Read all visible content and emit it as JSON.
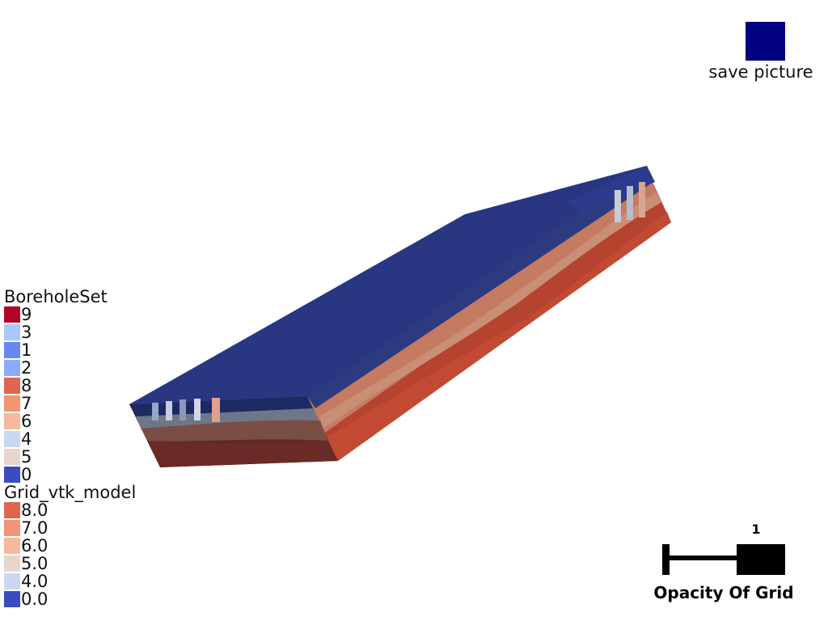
{
  "save_button": {
    "label": "save picture",
    "color": "#000080"
  },
  "legends": {
    "borehole": {
      "title": "BoreholeSet",
      "items": [
        {
          "label": "9",
          "color": "#b40426"
        },
        {
          "label": "3",
          "color": "#aac7fd"
        },
        {
          "label": "1",
          "color": "#6788ee"
        },
        {
          "label": "2",
          "color": "#88abfd"
        },
        {
          "label": "8",
          "color": "#e0654f"
        },
        {
          "label": "7",
          "color": "#f39475"
        },
        {
          "label": "6",
          "color": "#f7b89c"
        },
        {
          "label": "4",
          "color": "#c9d7f0"
        },
        {
          "label": "5",
          "color": "#e8d6cc"
        },
        {
          "label": "0",
          "color": "#3b4cc0"
        }
      ]
    },
    "grid": {
      "title": "Grid_vtk_model",
      "items": [
        {
          "label": "8.0",
          "color": "#e0654f"
        },
        {
          "label": "7.0",
          "color": "#f39475"
        },
        {
          "label": "6.0",
          "color": "#f7b89c"
        },
        {
          "label": "5.0",
          "color": "#e8d6cc"
        },
        {
          "label": "4.0",
          "color": "#c9d7f0"
        },
        {
          "label": "0.0",
          "color": "#3b4cc0"
        }
      ]
    }
  },
  "opacity_slider": {
    "value": "1",
    "label": "Opacity Of Grid"
  }
}
